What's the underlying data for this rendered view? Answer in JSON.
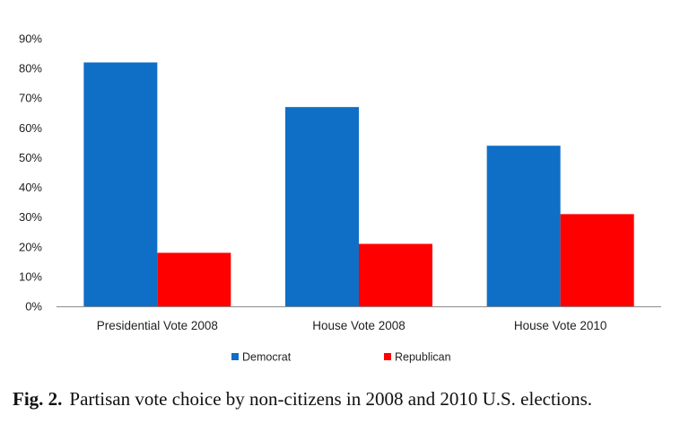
{
  "chart_data": {
    "type": "bar",
    "categories": [
      "Presidential Vote 2008",
      "House Vote 2008",
      "House Vote 2010"
    ],
    "series": [
      {
        "name": "Democrat",
        "color": "#0f6fc6",
        "values": [
          82,
          67,
          54
        ]
      },
      {
        "name": "Republican",
        "color": "#ff0000",
        "values": [
          18,
          21,
          31
        ]
      }
    ],
    "ylim": [
      0,
      90
    ],
    "yticks": [
      0,
      10,
      20,
      30,
      40,
      50,
      60,
      70,
      80,
      90
    ],
    "ytick_labels": [
      "0%",
      "10%",
      "20%",
      "30%",
      "40%",
      "50%",
      "60%",
      "70%",
      "80%",
      "90%"
    ],
    "grid": false,
    "legend_position": "bottom"
  },
  "caption": {
    "label": "Fig. 2.",
    "text": "Partisan vote choice by non-citizens in 2008 and 2010 U.S. elections."
  }
}
